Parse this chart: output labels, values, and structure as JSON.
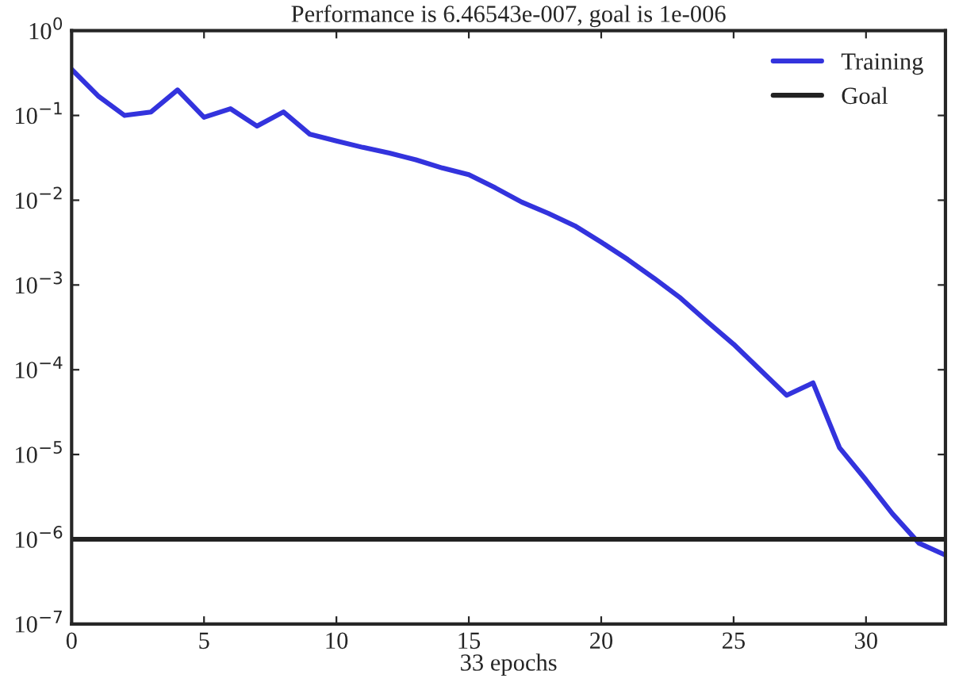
{
  "chart_data": {
    "type": "line",
    "title": "Performance is 6.46543e-007, goal is 1e-006",
    "xlabel": "33 epochs",
    "log": "y",
    "xlim": [
      0,
      33
    ],
    "xticks": [
      0,
      5,
      10,
      15,
      20,
      25,
      30
    ],
    "ylim": [
      1e-07,
      1
    ],
    "yticks": [
      {
        "value": 1,
        "label": "10$^{0}$"
      },
      {
        "value": 0.1,
        "label": "10$^{−1}$"
      },
      {
        "value": 0.01,
        "label": "10$^{−2}$"
      },
      {
        "value": 0.001,
        "label": "10$^{−3}$"
      },
      {
        "value": 0.0001,
        "label": "10$^{−4}$"
      },
      {
        "value": 1e-05,
        "label": "10$^{−5}$"
      },
      {
        "value": 1e-06,
        "label": "10$^{−6}$"
      },
      {
        "value": 1e-07,
        "label": "10$^{−7}$"
      }
    ],
    "legend": "top right",
    "grid": false,
    "series": [
      {
        "name": "Training",
        "color": "#3333dd",
        "x": [
          0,
          1,
          2,
          3,
          4,
          5,
          6,
          7,
          8,
          9,
          10,
          11,
          12,
          13,
          14,
          15,
          16,
          17,
          18,
          19,
          20,
          21,
          22,
          23,
          24,
          25,
          26,
          27,
          28,
          29,
          30,
          31,
          32,
          33
        ],
        "values": [
          0.35,
          0.17,
          0.1,
          0.11,
          0.2,
          0.095,
          0.12,
          0.075,
          0.11,
          0.06,
          0.05,
          0.042,
          0.036,
          0.03,
          0.024,
          0.02,
          0.014,
          0.0095,
          0.007,
          0.005,
          0.0032,
          0.002,
          0.0012,
          0.0007,
          0.00037,
          0.0002,
          0.0001,
          5e-05,
          7e-05,
          1.2e-05,
          5e-06,
          2e-06,
          9e-07,
          6.5e-07
        ]
      },
      {
        "name": "Goal",
        "color": "#222222",
        "x": [
          0,
          33
        ],
        "values": [
          1e-06,
          1e-06
        ]
      }
    ]
  }
}
